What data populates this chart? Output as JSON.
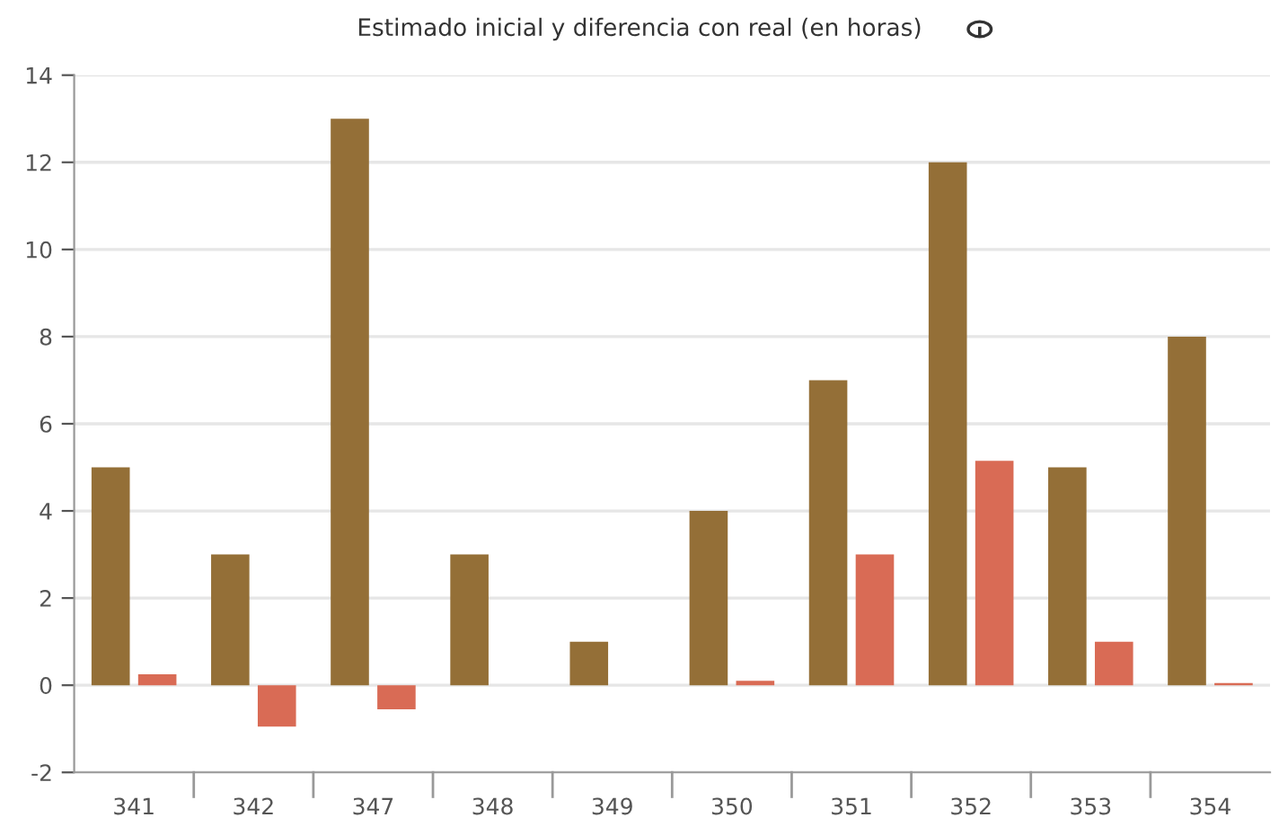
{
  "chart_data": {
    "type": "bar",
    "title": "Estimado inicial y diferencia con real (en horas)",
    "categories": [
      "341",
      "342",
      "347",
      "348",
      "349",
      "350",
      "351",
      "352",
      "353",
      "354"
    ],
    "series": [
      {
        "color": "#946f37",
        "values": [
          5,
          3,
          13,
          3,
          1,
          4,
          7,
          12,
          5,
          8
        ]
      },
      {
        "color": "#d96b55",
        "values": [
          0.25,
          -0.95,
          -0.55,
          null,
          null,
          0.1,
          3,
          5.15,
          1,
          0.05
        ]
      }
    ],
    "ylim": [
      -2,
      14
    ],
    "yticks": [
      -2,
      0,
      2,
      4,
      6,
      8,
      10,
      12,
      14
    ],
    "grid": "y",
    "legend": false
  }
}
